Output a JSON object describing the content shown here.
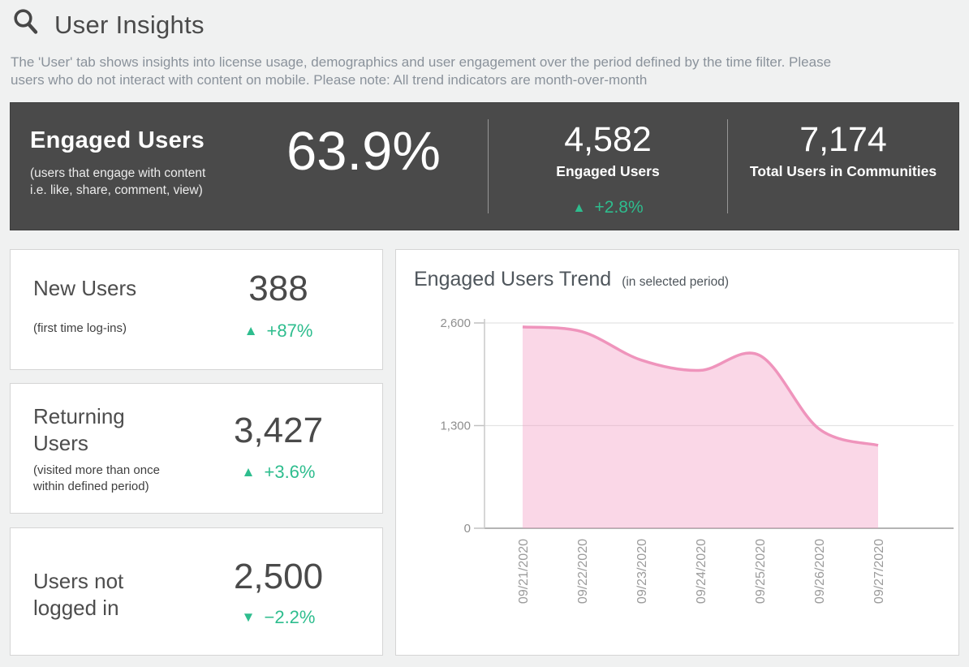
{
  "header": {
    "title": "User Insights",
    "description_line1": "The 'User' tab shows insights into license usage, demographics and user engagement over the period defined by the time filter. Please",
    "description_line2": "users who do not interact with content on mobile. Please note: All trend indicators are month-over-month"
  },
  "banner": {
    "title": "Engaged Users",
    "subtitle_line1": "(users that engage with content",
    "subtitle_line2": "i.e. like, share, comment, view)",
    "percentage": "63.9%",
    "engaged_users": {
      "value": "4,582",
      "label": "Engaged Users",
      "arrow": "▲",
      "delta": "+2.8%"
    },
    "total_users": {
      "value": "7,174",
      "label": "Total Users in Communities"
    }
  },
  "cards": [
    {
      "title": "New Users",
      "subtitle": "(first time log-ins)",
      "value": "388",
      "arrow": "▲",
      "delta": "+87%"
    },
    {
      "title": "Returning Users",
      "subtitle": "(visited more than once within defined period)",
      "value": "3,427",
      "arrow": "▲",
      "delta": "+3.6%"
    },
    {
      "title": "Users not logged in",
      "value": "2,500",
      "arrow": "▼",
      "delta": "−2.2%"
    }
  ],
  "chart": {
    "title": "Engaged Users Trend",
    "subtitle": "(in selected period)"
  },
  "chart_data": {
    "type": "area",
    "x": [
      "09/21/2020",
      "09/22/2020",
      "09/23/2020",
      "09/24/2020",
      "09/25/2020",
      "09/26/2020",
      "09/27/2020"
    ],
    "values": [
      2550,
      2490,
      2130,
      2000,
      2190,
      1260,
      1050
    ],
    "title": "Engaged Users Trend (in selected period)",
    "xlabel": "",
    "ylabel": "",
    "ylim": [
      0,
      2600
    ],
    "yticks": [
      0,
      1300,
      2600
    ],
    "ytick_labels": [
      "0",
      "1,300",
      "2,600"
    ],
    "grid": true,
    "legend": false,
    "smoothing": "spline",
    "line_color": "#ef94bc",
    "fill_color": "rgba(243,156,195,0.4)"
  },
  "colors": {
    "banner_bg": "#4a4a4a",
    "positive": "#2ebd8e",
    "line_pink": "#ef94bc",
    "heading_text": "#4a4a4a"
  }
}
